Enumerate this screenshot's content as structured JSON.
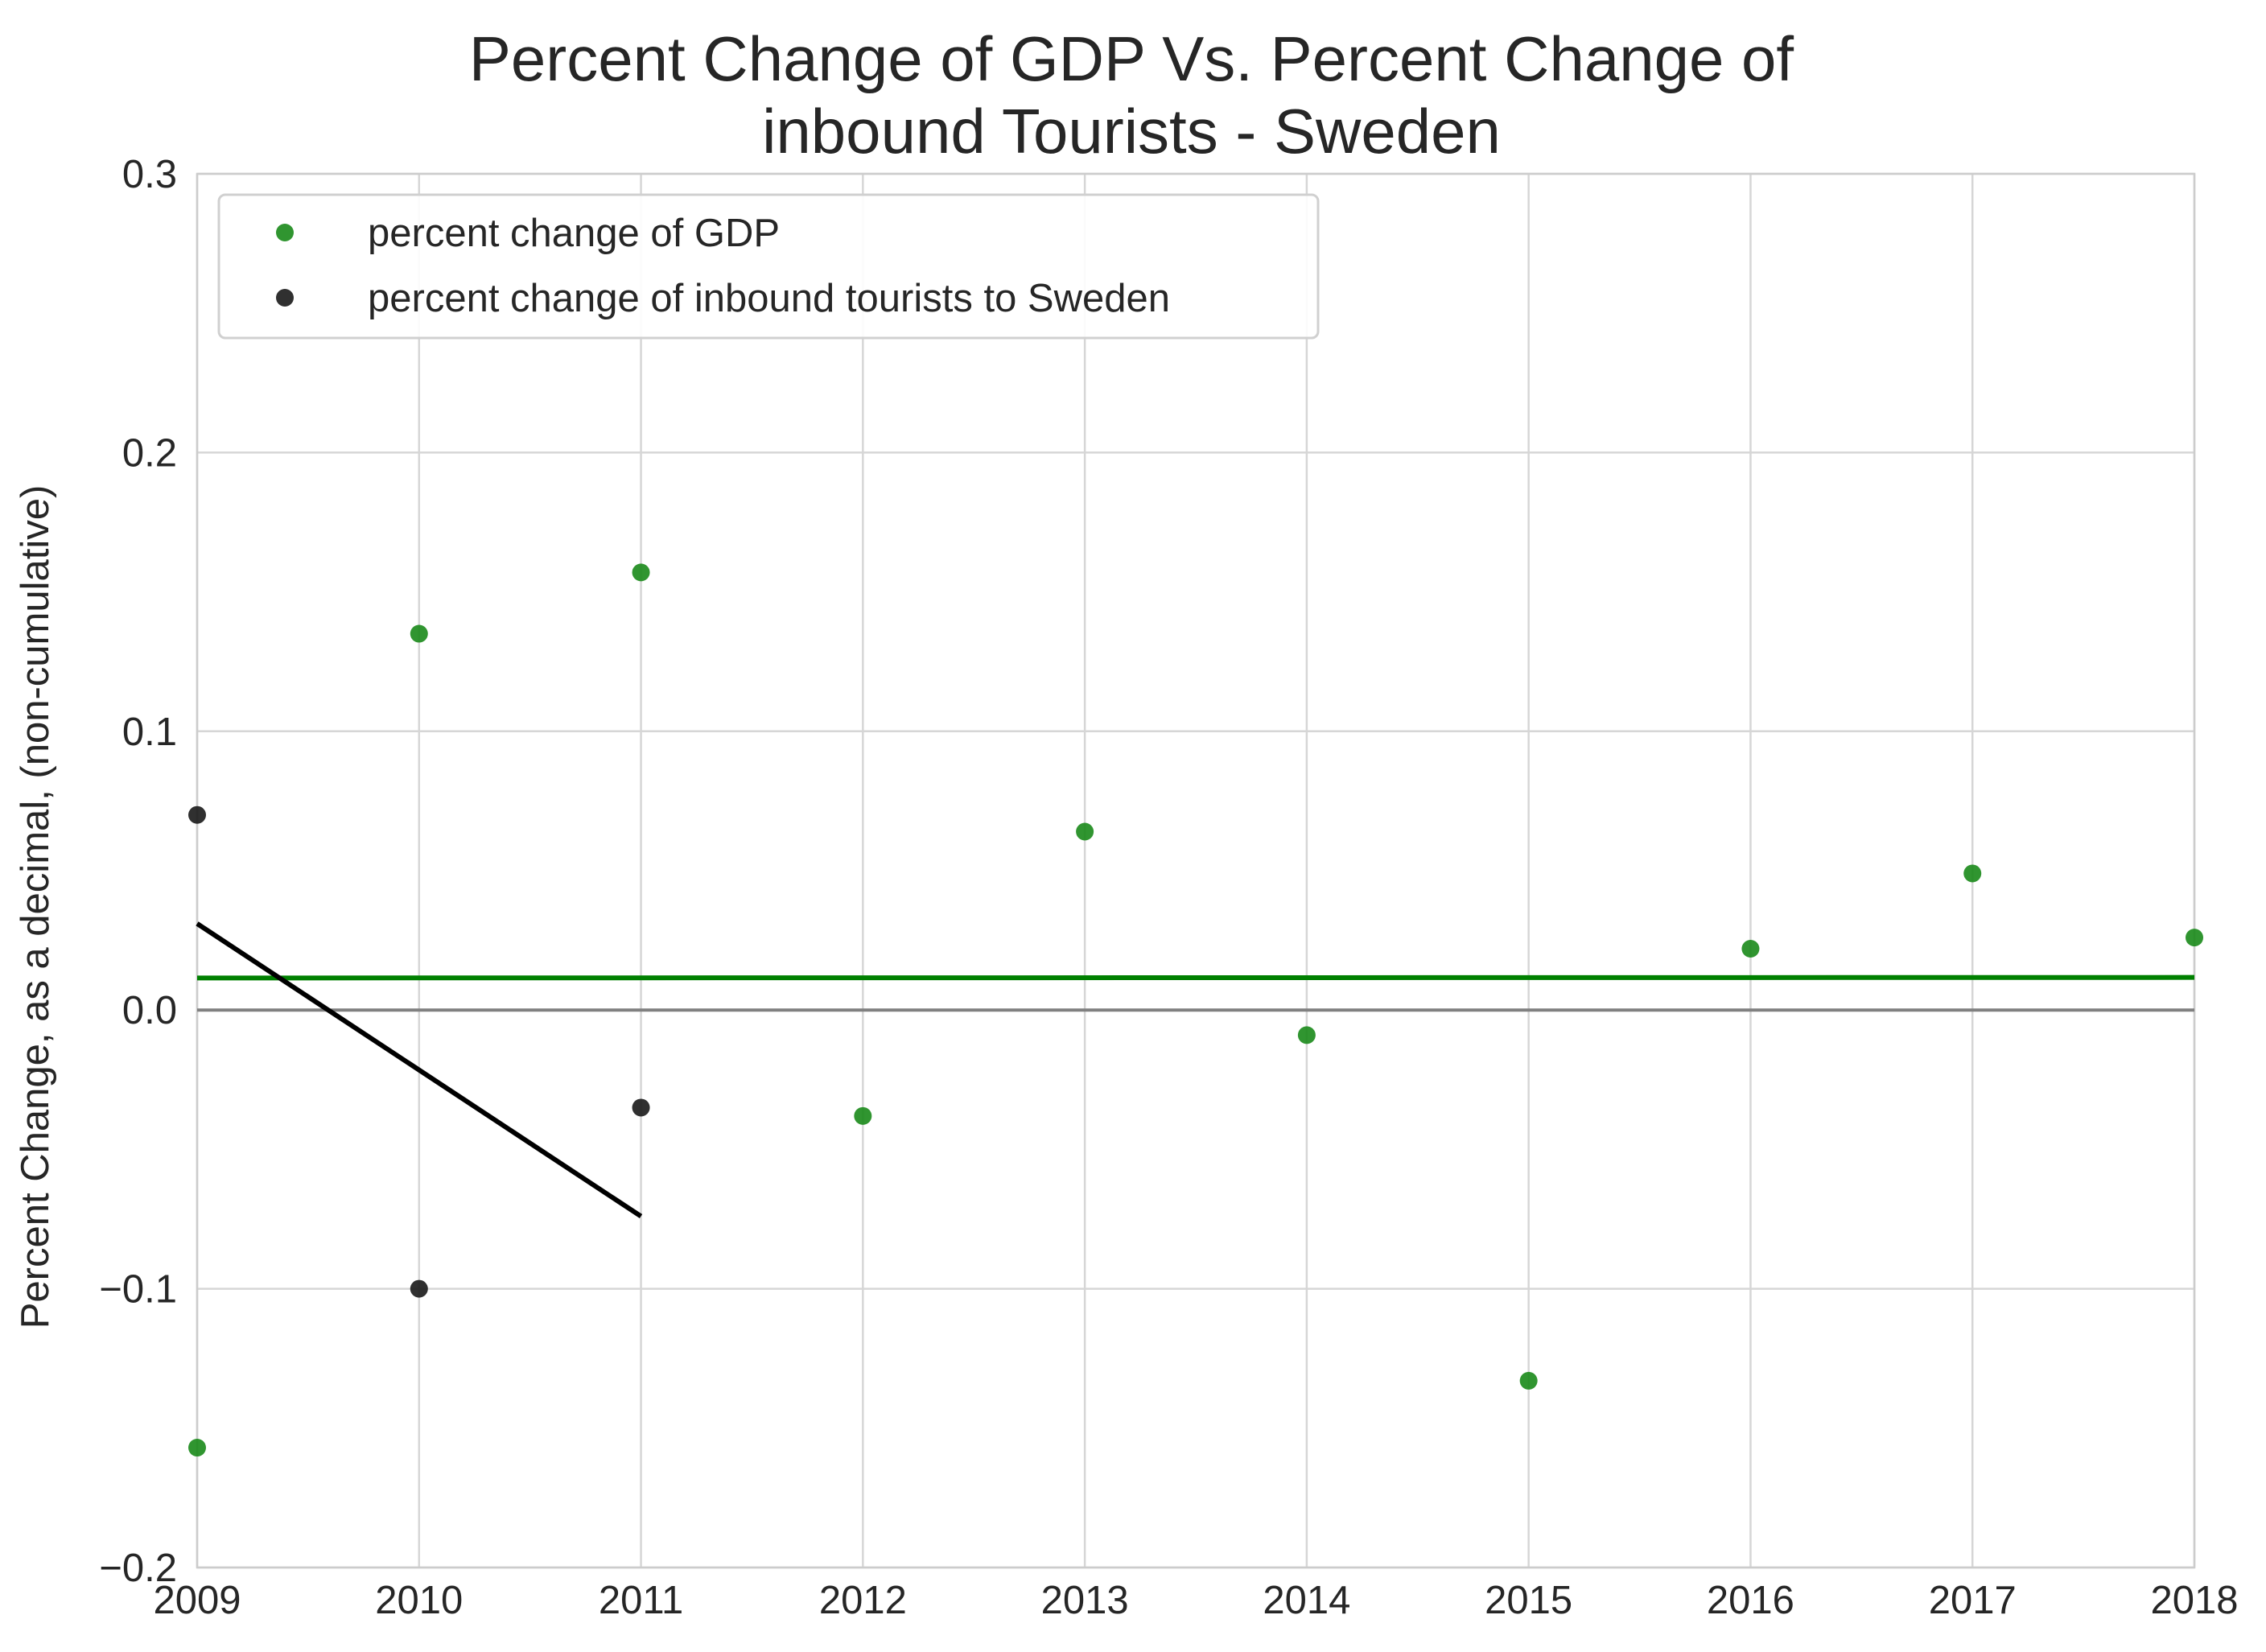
{
  "chart_data": {
    "type": "scatter",
    "title_lines": [
      "Percent Change of GDP Vs. Percent Change of",
      "inbound Tourists - Sweden"
    ],
    "xlabel": "",
    "ylabel": "Percent Change, as a decimal, (non-cumulative)",
    "xlim": [
      2009,
      2018
    ],
    "ylim": [
      -0.2,
      0.3
    ],
    "x_ticks": [
      2009,
      2010,
      2011,
      2012,
      2013,
      2014,
      2015,
      2016,
      2017,
      2018
    ],
    "x_tick_labels": [
      "2009",
      "2010",
      "2011",
      "2012",
      "2013",
      "2014",
      "2015",
      "2016",
      "2017",
      "2018"
    ],
    "y_ticks": [
      -0.2,
      -0.1,
      0.0,
      0.1,
      0.2,
      0.3
    ],
    "y_tick_labels": [
      "−0.2",
      "−0.1",
      "0.0",
      "0.1",
      "0.2",
      "0.3"
    ],
    "grid": true,
    "legend_position": "upper-left",
    "series": [
      {
        "name": "percent change of GDP",
        "color": "#1a8a1a",
        "x": [
          2009,
          2010,
          2011,
          2012,
          2013,
          2014,
          2015,
          2016,
          2017,
          2018
        ],
        "y": [
          -0.157,
          0.135,
          0.157,
          -0.038,
          0.064,
          -0.009,
          -0.133,
          0.022,
          0.049,
          0.026
        ]
      },
      {
        "name": "percent change of inbound tourists to Sweden",
        "color": "#1a1a1a",
        "x": [
          2009,
          2010,
          2011
        ],
        "y": [
          0.07,
          -0.1,
          -0.035
        ]
      }
    ],
    "fit_lines": [
      {
        "series": "percent change of GDP",
        "color": "#008000",
        "x": [
          2009,
          2018
        ],
        "y": [
          0.0115,
          0.0117
        ]
      },
      {
        "series": "percent change of inbound tourists to Sweden",
        "color": "#000000",
        "x": [
          2009,
          2011
        ],
        "y": [
          0.031,
          -0.074
        ]
      }
    ],
    "reference_line": {
      "y": 0.0,
      "color": "#808080"
    }
  }
}
